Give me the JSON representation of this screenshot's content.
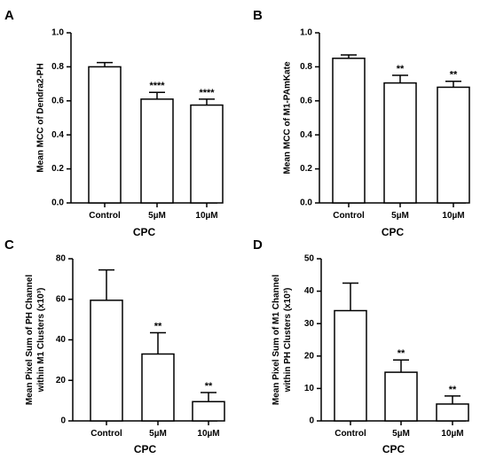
{
  "chart_data": [
    {
      "panel": "A",
      "type": "bar",
      "categories": [
        "Control",
        "5µM",
        "10µM"
      ],
      "values": [
        0.8,
        0.61,
        0.575
      ],
      "errors": [
        0.025,
        0.04,
        0.035
      ],
      "significance": [
        "",
        "****",
        "****"
      ],
      "ylabel_lines": [
        "Mean MCC of Dendra2-PH"
      ],
      "xlabel": "CPC",
      "ylim": [
        0,
        1.0
      ],
      "yticks": [
        "0.0",
        "0.2",
        "0.4",
        "0.6",
        "0.8",
        "1.0"
      ]
    },
    {
      "panel": "B",
      "type": "bar",
      "categories": [
        "Control",
        "5µM",
        "10µM"
      ],
      "values": [
        0.85,
        0.705,
        0.68
      ],
      "errors": [
        0.02,
        0.045,
        0.035
      ],
      "significance": [
        "",
        "**",
        "**"
      ],
      "ylabel_lines": [
        "Mean MCC of M1-PAmKate"
      ],
      "xlabel": "CPC",
      "ylim": [
        0,
        1.0
      ],
      "yticks": [
        "0.0",
        "0.2",
        "0.4",
        "0.6",
        "0.8",
        "1.0"
      ]
    },
    {
      "panel": "C",
      "type": "bar",
      "categories": [
        "Control",
        "5µM",
        "10µM"
      ],
      "values": [
        59.5,
        33,
        9.5
      ],
      "errors": [
        15,
        10.5,
        4.5
      ],
      "significance": [
        "",
        "**",
        "**"
      ],
      "ylabel_lines": [
        "Mean Pixel Sum of PH Channel",
        "within M1 Clusters (x10³)"
      ],
      "xlabel": "CPC",
      "ylim": [
        0,
        80
      ],
      "yticks": [
        "0",
        "20",
        "40",
        "60",
        "80"
      ]
    },
    {
      "panel": "D",
      "type": "bar",
      "categories": [
        "Control",
        "5µM",
        "10µM"
      ],
      "values": [
        34,
        15,
        5.2
      ],
      "errors": [
        8.5,
        3.8,
        2.5
      ],
      "significance": [
        "",
        "**",
        "**"
      ],
      "ylabel_lines": [
        "Mean Pixel Sum of M1 Channel",
        "within PH Clusters (x10³)"
      ],
      "xlabel": "CPC",
      "ylim": [
        0,
        50
      ],
      "yticks": [
        "0",
        "10",
        "20",
        "30",
        "40",
        "50"
      ]
    }
  ]
}
